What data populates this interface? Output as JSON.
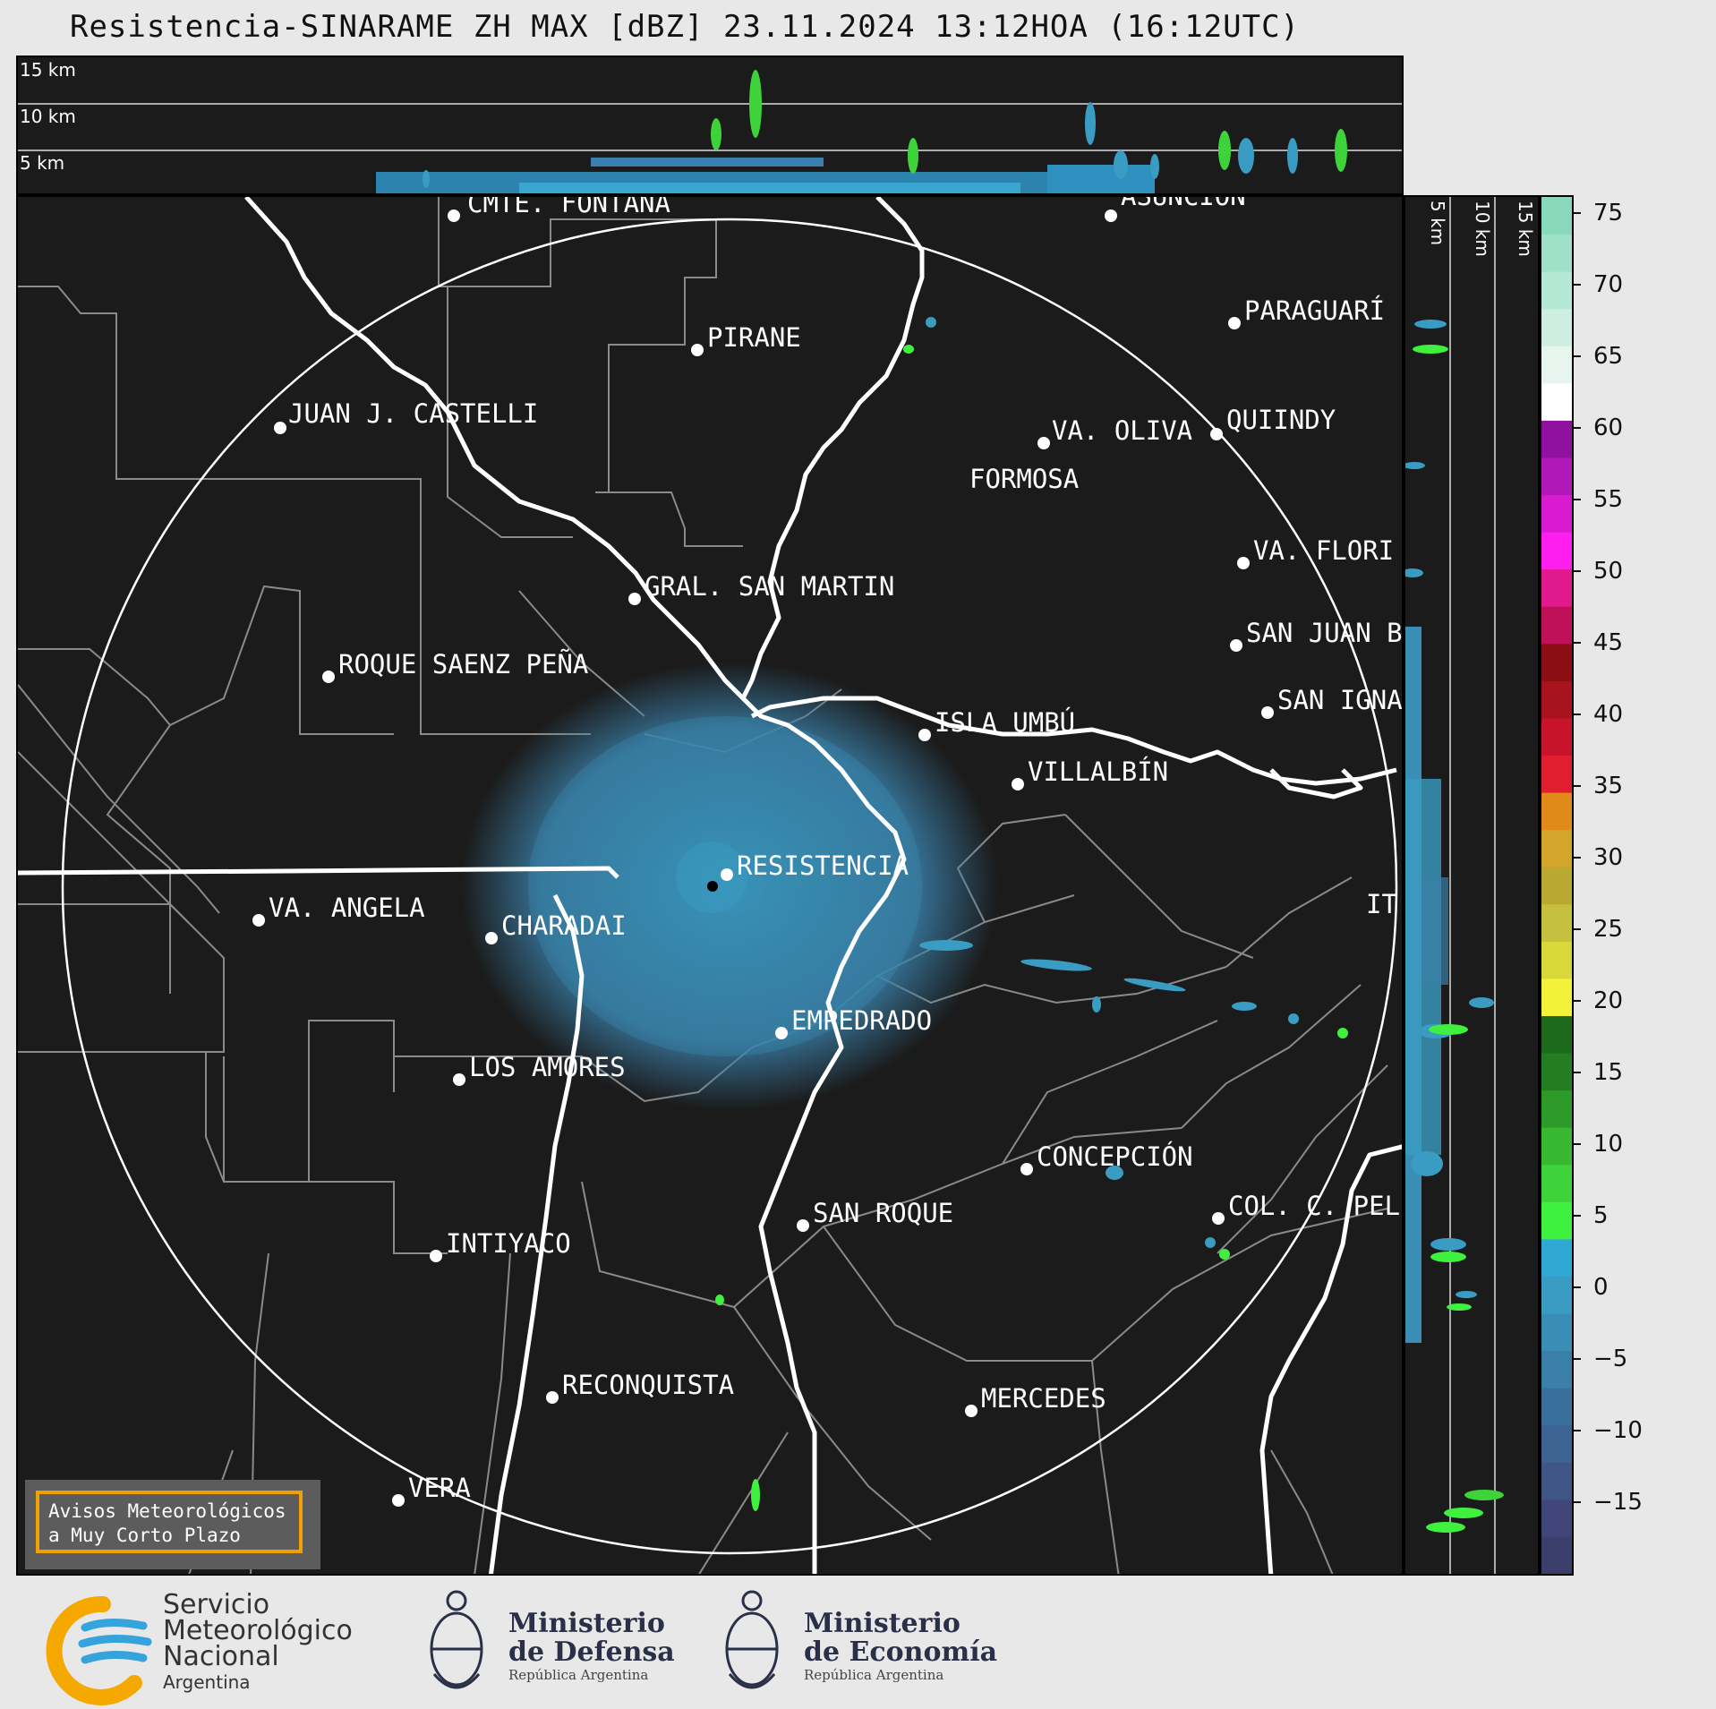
{
  "header": {
    "title": "Resistencia-SINARAME ZH MAX [dBZ] 23.11.2024 13:12HOA (16:12UTC)"
  },
  "cross_section": {
    "top_height_labels": [
      "15 km",
      "10 km",
      "5 km"
    ],
    "right_height_labels": [
      "5 km",
      "10 km",
      "15 km"
    ]
  },
  "colorbar": {
    "ticks": [
      "75",
      "70",
      "65",
      "60",
      "55",
      "50",
      "45",
      "40",
      "35",
      "30",
      "25",
      "20",
      "15",
      "10",
      "5",
      "0",
      "−5",
      "−10",
      "−15"
    ],
    "colors": [
      "#3b3f6b",
      "#40467a",
      "#3f5585",
      "#3c6391",
      "#39709b",
      "#3a7fa8",
      "#3a8db5",
      "#3a9cc2",
      "#2fa8d6",
      "#3ff03f",
      "#3ed33a",
      "#38b830",
      "#2c9a28",
      "#257d22",
      "#1e6a1c",
      "#f2f23a",
      "#d8d83a",
      "#c6c040",
      "#b9a831",
      "#d3a52a",
      "#e08a1a",
      "#e01e30",
      "#c8142a",
      "#a8141e",
      "#8a0e14",
      "#c01058",
      "#e01a8c",
      "#ff1ef0",
      "#d81ad0",
      "#b018b8",
      "#9010a0",
      "#ffffff",
      "#e6f6ee",
      "#cdeee0",
      "#b4e8d4",
      "#9ee0c8",
      "#8ad8bb"
    ]
  },
  "cities": [
    {
      "name": "CMTE. FONTANA"
    },
    {
      "name": "ASUNCIÓN"
    },
    {
      "name": "PARAGUARÍ"
    },
    {
      "name": "PIRANE"
    },
    {
      "name": "JUAN J. CASTELLI"
    },
    {
      "name": "VA. OLIVA"
    },
    {
      "name": "QUIINDY"
    },
    {
      "name": "FORMOSA"
    },
    {
      "name": "VA. FLORI"
    },
    {
      "name": "GRAL. SAN MARTIN"
    },
    {
      "name": "SAN JUAN B"
    },
    {
      "name": "ROQUE SAENZ PEÑA"
    },
    {
      "name": "SAN IGNA"
    },
    {
      "name": "ISLA UMBÚ"
    },
    {
      "name": "VILLALBÍN"
    },
    {
      "name": "RESISTENCIA"
    },
    {
      "name": "VA. ANGELA"
    },
    {
      "name": "CHARADAI"
    },
    {
      "name": "IT"
    },
    {
      "name": "EMPEDRADO"
    },
    {
      "name": "LOS AMORES"
    },
    {
      "name": "CONCEPCIÓN"
    },
    {
      "name": "SAN ROQUE"
    },
    {
      "name": "COL. C. PEL"
    },
    {
      "name": "INTIYACO"
    },
    {
      "name": "RECONQUISTA"
    },
    {
      "name": "MERCEDES"
    },
    {
      "name": "VERA"
    }
  ],
  "avisos": {
    "line1": "Avisos Meteorológicos",
    "line2": "a Muy Corto Plazo"
  },
  "logos": {
    "smn": {
      "line1": "Servicio",
      "line2": "Meteorológico",
      "line3": "Nacional",
      "line4": "Argentina"
    },
    "defensa": {
      "line1": "Ministerio",
      "line2": "de Defensa",
      "line3": "República Argentina"
    },
    "economia": {
      "line1": "Ministerio",
      "line2": "de Economía",
      "line3": "República Argentina"
    }
  }
}
